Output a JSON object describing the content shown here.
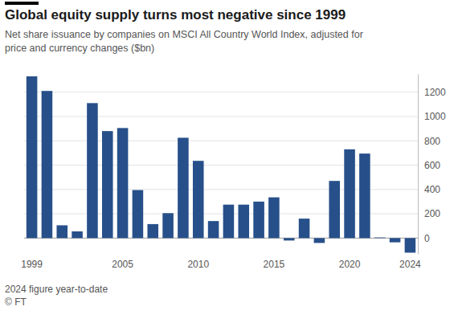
{
  "chart_data": {
    "type": "bar",
    "title": "Global equity supply turns most negative since 1999",
    "subtitle": "Net share issuance by companies on MSCI All Country World Index, adjusted for price and currency changes ($bn)",
    "categories": [
      "1999",
      null,
      null,
      null,
      null,
      null,
      "2005",
      null,
      null,
      null,
      null,
      "2010",
      null,
      null,
      null,
      null,
      "2015",
      null,
      null,
      null,
      null,
      "2020",
      null,
      null,
      null,
      "2024"
    ],
    "values": [
      1330,
      1210,
      105,
      55,
      1110,
      880,
      905,
      395,
      115,
      205,
      825,
      635,
      140,
      275,
      275,
      300,
      335,
      -20,
      160,
      -40,
      470,
      730,
      695,
      5,
      -35,
      -120
    ],
    "color": "#27508a",
    "ylim": [
      -130,
      1350
    ],
    "yticks": [
      0,
      200,
      400,
      600,
      800,
      1000,
      1200
    ],
    "grid": true,
    "annotations": [
      "2024 figure year-to-date",
      "© FT"
    ]
  }
}
